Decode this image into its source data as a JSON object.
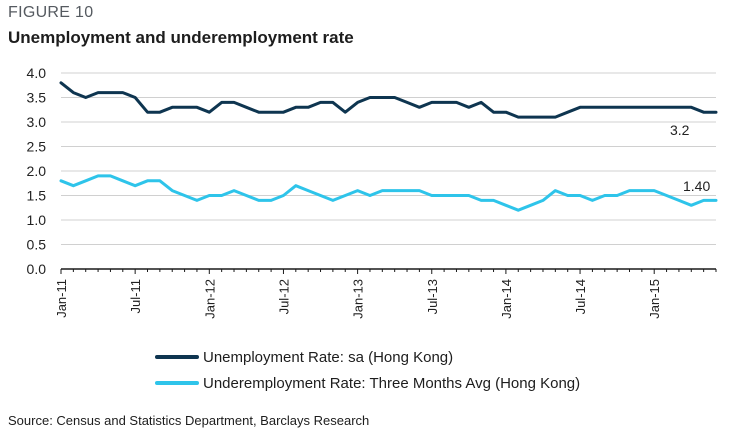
{
  "figure_label": "FIGURE 10",
  "title": "Unemployment and underemployment rate",
  "source": "Source: Census and Statistics Department, Barclays Research",
  "chart_data": {
    "type": "line",
    "x": [
      "Jan-11",
      "Feb-11",
      "Mar-11",
      "Apr-11",
      "May-11",
      "Jun-11",
      "Jul-11",
      "Aug-11",
      "Sep-11",
      "Oct-11",
      "Nov-11",
      "Dec-11",
      "Jan-12",
      "Feb-12",
      "Mar-12",
      "Apr-12",
      "May-12",
      "Jun-12",
      "Jul-12",
      "Aug-12",
      "Sep-12",
      "Oct-12",
      "Nov-12",
      "Dec-12",
      "Jan-13",
      "Feb-13",
      "Mar-13",
      "Apr-13",
      "May-13",
      "Jun-13",
      "Jul-13",
      "Aug-13",
      "Sep-13",
      "Oct-13",
      "Nov-13",
      "Dec-13",
      "Jan-14",
      "Feb-14",
      "Mar-14",
      "Apr-14",
      "May-14",
      "Jun-14",
      "Jul-14",
      "Aug-14",
      "Sep-14",
      "Oct-14",
      "Nov-14",
      "Dec-14",
      "Jan-15",
      "Feb-15",
      "Mar-15",
      "Apr-15",
      "May-15",
      "Jun-15"
    ],
    "x_tick_labels": [
      "Jan-11",
      "Jul-11",
      "Jan-12",
      "Jul-12",
      "Jan-13",
      "Jul-13",
      "Jan-14",
      "Jul-14",
      "Jan-15"
    ],
    "ylim": [
      0,
      4.0
    ],
    "y_ticks": [
      "0.0",
      "0.5",
      "1.0",
      "1.5",
      "2.0",
      "2.5",
      "3.0",
      "3.5",
      "4.0"
    ],
    "grid": "horizontal",
    "legend_position": "bottom",
    "series": [
      {
        "name": "Unemployment Rate: sa (Hong Kong)",
        "color": "#0e3550",
        "values": [
          3.8,
          3.6,
          3.5,
          3.6,
          3.6,
          3.6,
          3.5,
          3.2,
          3.2,
          3.3,
          3.3,
          3.3,
          3.2,
          3.4,
          3.4,
          3.3,
          3.2,
          3.2,
          3.2,
          3.3,
          3.3,
          3.4,
          3.4,
          3.2,
          3.4,
          3.5,
          3.5,
          3.5,
          3.4,
          3.3,
          3.4,
          3.4,
          3.4,
          3.3,
          3.4,
          3.2,
          3.2,
          3.1,
          3.1,
          3.1,
          3.1,
          3.2,
          3.3,
          3.3,
          3.3,
          3.3,
          3.3,
          3.3,
          3.3,
          3.3,
          3.3,
          3.3,
          3.2,
          3.2
        ],
        "end_label": "3.2"
      },
      {
        "name": "Underemployment Rate: Three Months Avg (Hong Kong)",
        "color": "#2ec4ea",
        "values": [
          1.8,
          1.7,
          1.8,
          1.9,
          1.9,
          1.8,
          1.7,
          1.8,
          1.8,
          1.6,
          1.5,
          1.4,
          1.5,
          1.5,
          1.6,
          1.5,
          1.4,
          1.4,
          1.5,
          1.7,
          1.6,
          1.5,
          1.4,
          1.5,
          1.6,
          1.5,
          1.6,
          1.6,
          1.6,
          1.6,
          1.5,
          1.5,
          1.5,
          1.5,
          1.4,
          1.4,
          1.3,
          1.2,
          1.3,
          1.4,
          1.6,
          1.5,
          1.5,
          1.4,
          1.5,
          1.5,
          1.6,
          1.6,
          1.6,
          1.5,
          1.4,
          1.3,
          1.4,
          1.4
        ],
        "end_label": "1.40"
      }
    ]
  }
}
